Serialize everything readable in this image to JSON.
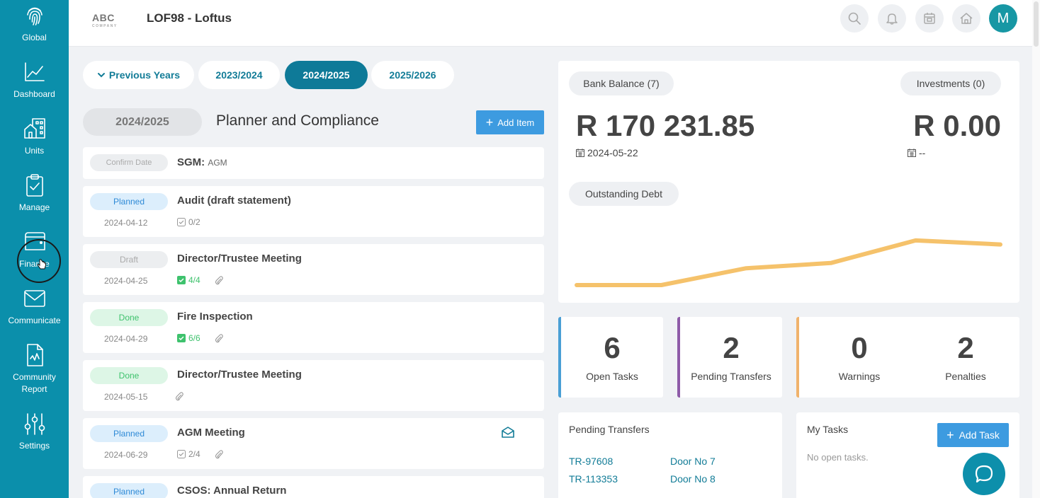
{
  "sidebar": {
    "items": [
      {
        "label": "Global",
        "icon": "fingerprint-icon"
      },
      {
        "label": "Dashboard",
        "icon": "line-chart-icon"
      },
      {
        "label": "Units",
        "icon": "building-icon"
      },
      {
        "label": "Manage",
        "icon": "clipboard-check-icon"
      },
      {
        "label": "Finance",
        "icon": "wallet-icon"
      },
      {
        "label": "Communicate",
        "icon": "envelope-icon"
      },
      {
        "label": "Community Report",
        "icon": "report-icon"
      },
      {
        "label": "Settings",
        "icon": "sliders-icon"
      }
    ]
  },
  "header": {
    "logo_text": "ABC",
    "logo_sub": "COMPANY",
    "title": "LOF98 - Loftus",
    "avatar_letter": "M"
  },
  "year_tabs": [
    {
      "label": "Previous Years"
    },
    {
      "label": "2023/2024"
    },
    {
      "label": "2024/2025"
    },
    {
      "label": "2025/2026"
    }
  ],
  "planner": {
    "year": "2024/2025",
    "title": "Planner and Compliance",
    "add_item": "Add Item"
  },
  "tasks": [
    {
      "status": "Confirm Date",
      "title": "SGM:",
      "title_suffix": "AGM"
    },
    {
      "status": "Planned",
      "title": "Audit (draft statement)",
      "date": "2024-04-12",
      "check": "0/2"
    },
    {
      "status": "Draft",
      "title": "Director/Trustee Meeting",
      "date": "2024-04-25",
      "check": "4/4"
    },
    {
      "status": "Done",
      "title": "Fire Inspection",
      "date": "2024-04-29",
      "check": "6/6"
    },
    {
      "status": "Done",
      "title": "Director/Trustee Meeting",
      "date": "2024-05-15"
    },
    {
      "status": "Planned",
      "title": "AGM Meeting",
      "date": "2024-06-29",
      "check": "2/4"
    },
    {
      "status": "Planned",
      "title": "CSOS: Annual Return"
    }
  ],
  "bank": {
    "balance_label": "Bank Balance (7)",
    "balance": "R 170 231.85",
    "balance_date": "2024-05-22",
    "investments_label": "Investments (0)",
    "investments": "R 0.00",
    "investments_date": "--",
    "debt_label": "Outstanding Debt"
  },
  "chart_data": {
    "type": "line",
    "series": [
      {
        "values": [
          0,
          0,
          29,
          38,
          77,
          70
        ]
      }
    ],
    "color": "#f5c26b"
  },
  "stats": [
    {
      "value": "6",
      "label": "Open Tasks",
      "color": "#4a9fd5"
    },
    {
      "value": "2",
      "label": "Pending Transfers",
      "color": "#8e5ba8"
    },
    {
      "value": "0",
      "label": "Warnings",
      "color": "#f0b26b"
    },
    {
      "value": "2",
      "label": "Penalties"
    }
  ],
  "pending_transfers": {
    "title": "Pending Transfers",
    "rows": [
      {
        "id": "TR-97608",
        "unit": "Door No 7"
      },
      {
        "id": "TR-113353",
        "unit": "Door No 8"
      }
    ]
  },
  "my_tasks": {
    "title": "My Tasks",
    "add_task": "Add Task",
    "empty": "No open tasks."
  }
}
